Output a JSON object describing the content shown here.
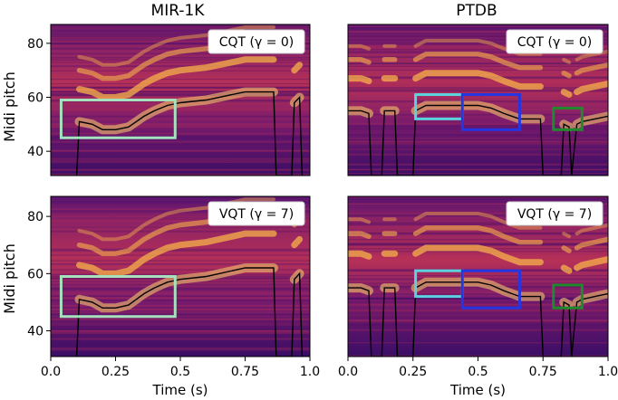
{
  "figure": {
    "columns": [
      "MIR-1K",
      "PTDB"
    ],
    "rows": [
      "CQT (γ = 0)",
      "VQT (γ = 7)"
    ],
    "ylabel": "Midi pitch",
    "xlabel": "Time (s)"
  },
  "chart_data": [
    {
      "type": "heatmap",
      "title": "MIR-1K",
      "annotation": "CQT (γ = 0)",
      "ylabel": "Midi pitch",
      "xlabel": "",
      "xlim": [
        0,
        1.0
      ],
      "ylim": [
        31,
        87
      ],
      "yticks": [
        40,
        60,
        80
      ],
      "xticks": [],
      "pitch_contour": {
        "x": [
          0.1,
          0.11,
          0.16,
          0.2,
          0.25,
          0.3,
          0.33,
          0.36,
          0.4,
          0.45,
          0.5,
          0.6,
          0.7,
          0.75,
          0.86,
          0.87,
          0.93,
          0.94,
          0.96,
          0.97
        ],
        "y": [
          31,
          51,
          50,
          48,
          48,
          49,
          51,
          53,
          55,
          57,
          58,
          59,
          61,
          62,
          62,
          31,
          31,
          58,
          60,
          31
        ]
      },
      "boxes": [
        {
          "color": "#a6e1bd",
          "x": [
            0.04,
            0.48
          ],
          "y": [
            45,
            59
          ]
        }
      ]
    },
    {
      "type": "heatmap",
      "title": "PTDB",
      "annotation": "CQT (γ = 0)",
      "ylabel": "",
      "xlabel": "",
      "xlim": [
        0,
        1.0
      ],
      "ylim": [
        31,
        87
      ],
      "yticks": [],
      "xticks": [],
      "pitch_contour": {
        "x": [
          0.0,
          0.05,
          0.08,
          0.09,
          0.13,
          0.14,
          0.18,
          0.19,
          0.25,
          0.26,
          0.3,
          0.4,
          0.45,
          0.5,
          0.55,
          0.6,
          0.66,
          0.7,
          0.74,
          0.75,
          0.82,
          0.83,
          0.85,
          0.86,
          0.88,
          0.9,
          0.95,
          1.0
        ],
        "y": [
          55,
          55,
          54,
          31,
          31,
          55,
          55,
          31,
          31,
          55,
          57,
          57,
          57,
          57,
          56,
          54,
          52,
          52,
          52,
          31,
          31,
          50,
          49,
          31,
          50,
          51,
          52,
          53
        ],
        "xmax": 1.0
      },
      "boxes": [
        {
          "color": "#5bd3df",
          "x": [
            0.26,
            0.44
          ],
          "y": [
            52,
            61
          ]
        },
        {
          "color": "#2435e2",
          "x": [
            0.44,
            0.66
          ],
          "y": [
            48,
            61
          ]
        },
        {
          "color": "#1f8a2c",
          "x": [
            0.79,
            0.9
          ],
          "y": [
            48,
            56
          ]
        }
      ]
    },
    {
      "type": "heatmap",
      "title": "",
      "annotation": "VQT (γ = 7)",
      "ylabel": "Midi pitch",
      "xlabel": "Time (s)",
      "xlim": [
        0,
        1.0
      ],
      "ylim": [
        31,
        87
      ],
      "yticks": [
        40,
        60,
        80
      ],
      "xticks": [
        0.0,
        0.25,
        0.5,
        0.75,
        1.0
      ],
      "xticklabels": [
        "0.0",
        "0.25",
        "0.5",
        "0.75",
        "1.0"
      ],
      "pitch_contour": {
        "x": [
          0.1,
          0.11,
          0.16,
          0.2,
          0.25,
          0.3,
          0.33,
          0.36,
          0.4,
          0.45,
          0.5,
          0.6,
          0.7,
          0.75,
          0.86,
          0.87,
          0.93,
          0.94,
          0.96,
          0.97
        ],
        "y": [
          31,
          51,
          50,
          48,
          48,
          49,
          51,
          53,
          55,
          57,
          58,
          59,
          61,
          62,
          62,
          31,
          31,
          58,
          60,
          31
        ]
      },
      "boxes": [
        {
          "color": "#a6e1bd",
          "x": [
            0.04,
            0.48
          ],
          "y": [
            45,
            59
          ]
        }
      ]
    },
    {
      "type": "heatmap",
      "title": "",
      "annotation": "VQT (γ = 7)",
      "ylabel": "",
      "xlabel": "Time (s)",
      "xlim": [
        0,
        1.0
      ],
      "ylim": [
        31,
        87
      ],
      "yticks": [],
      "xticks": [
        0.0,
        0.25,
        0.5,
        0.75,
        1.0
      ],
      "xticklabels": [
        "0.0",
        "0.25",
        "0.5",
        "0.75",
        "1.0"
      ],
      "pitch_contour": {
        "x": [
          0.0,
          0.05,
          0.08,
          0.09,
          0.13,
          0.14,
          0.18,
          0.19,
          0.25,
          0.26,
          0.3,
          0.4,
          0.45,
          0.5,
          0.55,
          0.6,
          0.66,
          0.7,
          0.74,
          0.75,
          0.82,
          0.83,
          0.85,
          0.86,
          0.88,
          0.9,
          0.95,
          1.0
        ],
        "y": [
          55,
          55,
          54,
          31,
          31,
          55,
          55,
          31,
          31,
          55,
          57,
          57,
          57,
          57,
          56,
          54,
          52,
          52,
          52,
          31,
          31,
          50,
          49,
          31,
          50,
          51,
          52,
          53
        ]
      },
      "boxes": [
        {
          "color": "#5bd3df",
          "x": [
            0.26,
            0.44
          ],
          "y": [
            52,
            61
          ]
        },
        {
          "color": "#2435e2",
          "x": [
            0.44,
            0.66
          ],
          "y": [
            48,
            61
          ]
        },
        {
          "color": "#1f8a2c",
          "x": [
            0.79,
            0.9
          ],
          "y": [
            48,
            56
          ]
        }
      ]
    }
  ],
  "colors": {
    "heat_low": "#2a0a5e",
    "heat_mid": "#c23b55",
    "heat_high": "#fbd36a",
    "contour": "#000000"
  }
}
